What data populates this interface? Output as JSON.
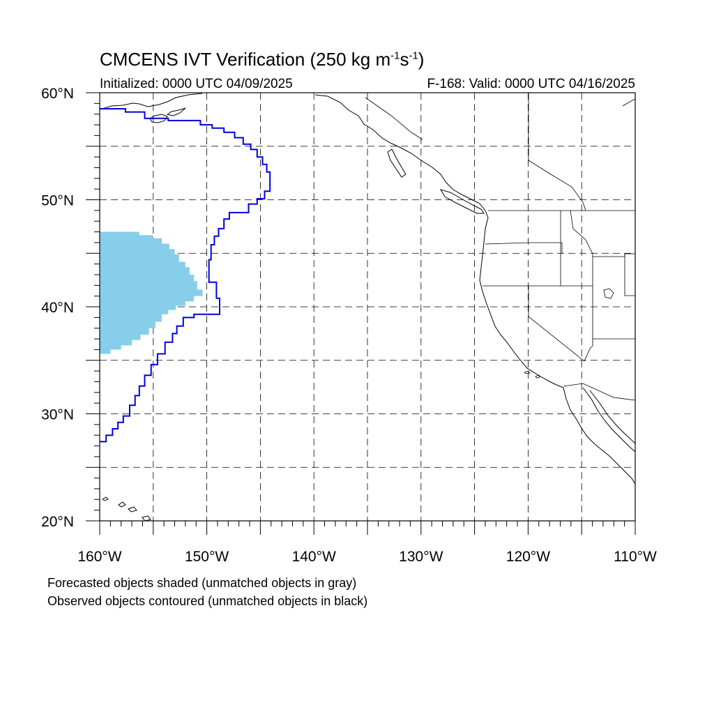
{
  "title": {
    "prefix": "CMCENS IVT Verification (250 kg m",
    "exp1": "-1",
    "mid": "s",
    "exp2": "-1",
    "suffix": ")"
  },
  "subtitle_left": "Initialized: 0000 UTC 04/09/2025",
  "subtitle_right": "F-168: Valid: 0000 UTC 04/16/2025",
  "footnotes": [
    "Forecasted objects shaded (unmatched objects in gray)",
    "Observed objects contoured (unmatched objects in black)"
  ],
  "map": {
    "projection": "cylindrical-equidistant",
    "lon_range": [
      -160,
      -110
    ],
    "lat_range": [
      20,
      60
    ],
    "lat_labels": [
      {
        "lat": 60,
        "text": "60°N"
      },
      {
        "lat": 50,
        "text": "50°N"
      },
      {
        "lat": 40,
        "text": "40°N"
      },
      {
        "lat": 30,
        "text": "30°N"
      },
      {
        "lat": 20,
        "text": "20°N"
      }
    ],
    "lon_labels": [
      {
        "lon": -160,
        "text": "160°W"
      },
      {
        "lon": -150,
        "text": "150°W"
      },
      {
        "lon": -140,
        "text": "140°W"
      },
      {
        "lon": -130,
        "text": "130°W"
      },
      {
        "lon": -120,
        "text": "120°W"
      },
      {
        "lon": -110,
        "text": "110°W"
      }
    ],
    "gridline_spacing_deg": 5,
    "colors": {
      "forecast_fill": "#87ceeb",
      "observed_contour": "#0000dd",
      "coastline": "#000000",
      "grid": "#000000"
    },
    "forecast_object": [
      [
        -160,
        47.0
      ],
      [
        -156.3,
        47.0
      ],
      [
        -156.3,
        46.7
      ],
      [
        -155.0,
        46.7
      ],
      [
        -155.0,
        46.4
      ],
      [
        -154.2,
        46.4
      ],
      [
        -154.2,
        45.9
      ],
      [
        -153.5,
        45.9
      ],
      [
        -153.5,
        45.4
      ],
      [
        -153.0,
        45.4
      ],
      [
        -153.0,
        44.9
      ],
      [
        -152.6,
        44.9
      ],
      [
        -152.6,
        44.2
      ],
      [
        -152.0,
        44.2
      ],
      [
        -152.0,
        43.7
      ],
      [
        -151.6,
        43.7
      ],
      [
        -151.6,
        43.0
      ],
      [
        -151.2,
        43.0
      ],
      [
        -151.2,
        42.4
      ],
      [
        -150.9,
        42.4
      ],
      [
        -150.9,
        41.6
      ],
      [
        -150.4,
        41.6
      ],
      [
        -150.4,
        41.0
      ],
      [
        -151.2,
        41.0
      ],
      [
        -151.2,
        40.5
      ],
      [
        -152.0,
        40.5
      ],
      [
        -152.0,
        40.1
      ],
      [
        -152.9,
        40.1
      ],
      [
        -152.9,
        39.7
      ],
      [
        -153.6,
        39.7
      ],
      [
        -153.6,
        39.3
      ],
      [
        -154.2,
        39.3
      ],
      [
        -154.2,
        38.6
      ],
      [
        -154.8,
        38.6
      ],
      [
        -154.8,
        38.0
      ],
      [
        -155.4,
        38.0
      ],
      [
        -155.4,
        37.4
      ],
      [
        -156.2,
        37.4
      ],
      [
        -156.2,
        36.9
      ],
      [
        -157.0,
        36.9
      ],
      [
        -157.0,
        36.4
      ],
      [
        -158.0,
        36.4
      ],
      [
        -158.0,
        36.0
      ],
      [
        -159.0,
        36.0
      ],
      [
        -159.0,
        35.6
      ],
      [
        -160,
        35.6
      ]
    ],
    "observed_object": [
      [
        -160,
        58.5
      ],
      [
        -157.6,
        58.5
      ],
      [
        -157.6,
        58.2
      ],
      [
        -155.8,
        58.2
      ],
      [
        -155.8,
        57.6
      ],
      [
        -153.6,
        57.6
      ],
      [
        -153.6,
        57.4
      ],
      [
        -150.6,
        57.4
      ],
      [
        -150.6,
        57.0
      ],
      [
        -149.5,
        57.0
      ],
      [
        -149.5,
        56.7
      ],
      [
        -148.4,
        56.7
      ],
      [
        -148.4,
        56.3
      ],
      [
        -147.4,
        56.3
      ],
      [
        -147.4,
        55.8
      ],
      [
        -146.6,
        55.8
      ],
      [
        -146.6,
        55.2
      ],
      [
        -145.9,
        55.2
      ],
      [
        -145.9,
        54.7
      ],
      [
        -145.3,
        54.7
      ],
      [
        -145.3,
        54.0
      ],
      [
        -144.8,
        54.0
      ],
      [
        -144.8,
        53.3
      ],
      [
        -144.4,
        53.3
      ],
      [
        -144.4,
        52.6
      ],
      [
        -144.1,
        52.6
      ],
      [
        -144.1,
        50.8
      ],
      [
        -144.6,
        50.8
      ],
      [
        -144.6,
        50.1
      ],
      [
        -145.3,
        50.1
      ],
      [
        -145.3,
        49.6
      ],
      [
        -146.1,
        49.6
      ],
      [
        -146.1,
        48.8
      ],
      [
        -147.9,
        48.8
      ],
      [
        -147.9,
        48.2
      ],
      [
        -148.4,
        48.2
      ],
      [
        -148.4,
        47.3
      ],
      [
        -148.9,
        47.3
      ],
      [
        -148.9,
        46.6
      ],
      [
        -149.3,
        46.6
      ],
      [
        -149.3,
        45.8
      ],
      [
        -149.6,
        45.8
      ],
      [
        -149.6,
        44.4
      ],
      [
        -149.8,
        44.4
      ],
      [
        -149.8,
        42.3
      ],
      [
        -149.1,
        42.3
      ],
      [
        -149.1,
        40.8
      ],
      [
        -148.8,
        40.8
      ],
      [
        -148.8,
        39.3
      ],
      [
        -151.2,
        39.3
      ],
      [
        -151.2,
        39.0
      ],
      [
        -152.2,
        39.0
      ],
      [
        -152.2,
        38.2
      ],
      [
        -152.8,
        38.2
      ],
      [
        -152.8,
        37.5
      ],
      [
        -153.2,
        37.5
      ],
      [
        -153.2,
        36.7
      ],
      [
        -153.9,
        36.7
      ],
      [
        -153.9,
        35.6
      ],
      [
        -154.6,
        35.6
      ],
      [
        -154.6,
        34.6
      ],
      [
        -155.2,
        34.6
      ],
      [
        -155.2,
        33.6
      ],
      [
        -155.8,
        33.6
      ],
      [
        -155.8,
        32.6
      ],
      [
        -156.3,
        32.6
      ],
      [
        -156.3,
        31.7
      ],
      [
        -156.7,
        31.7
      ],
      [
        -156.7,
        30.8
      ],
      [
        -157.2,
        30.8
      ],
      [
        -157.2,
        29.8
      ],
      [
        -157.8,
        29.8
      ],
      [
        -157.8,
        29.2
      ],
      [
        -158.3,
        29.2
      ],
      [
        -158.3,
        28.6
      ],
      [
        -158.8,
        28.6
      ],
      [
        -158.8,
        28.0
      ],
      [
        -159.4,
        28.0
      ],
      [
        -159.4,
        27.4
      ],
      [
        -160,
        27.4
      ]
    ]
  }
}
